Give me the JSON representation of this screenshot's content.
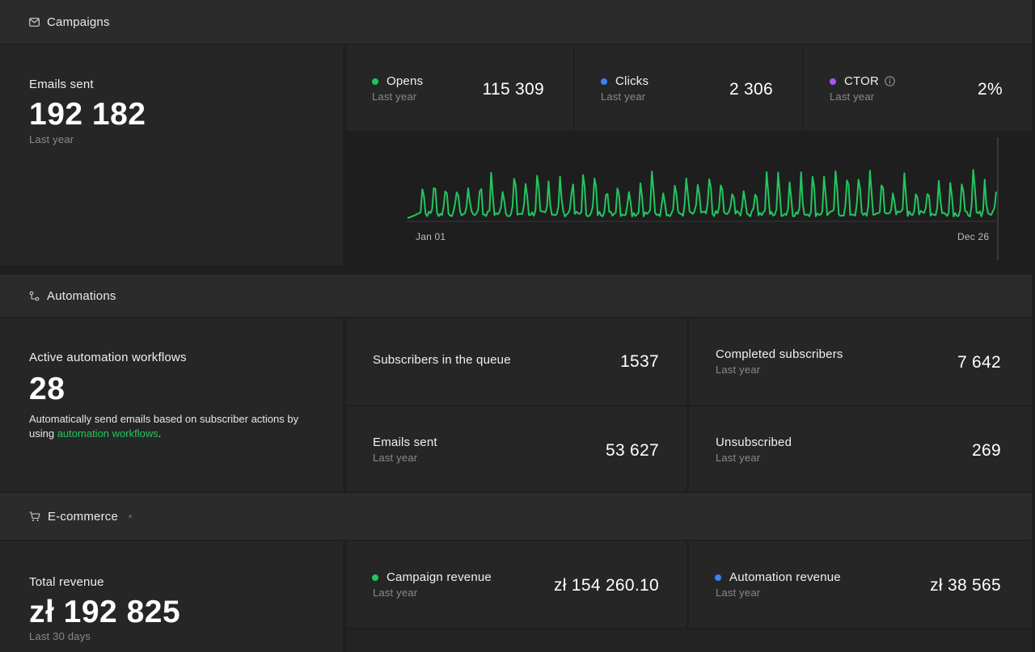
{
  "campaigns": {
    "header": "Campaigns",
    "emails_sent": {
      "label": "Emails sent",
      "value": "192 182",
      "period": "Last year"
    },
    "opens": {
      "label": "Opens",
      "period": "Last year",
      "value": "115 309",
      "color": "#22c55e"
    },
    "clicks": {
      "label": "Clicks",
      "period": "Last year",
      "value": "2 306",
      "color": "#3b82f6"
    },
    "ctor": {
      "label": "CTOR",
      "period": "Last year",
      "value": "2%",
      "color": "#a855f7"
    },
    "chart": {
      "x_start": "Jan 01",
      "x_end": "Dec 26",
      "line_color": "#22c55e"
    }
  },
  "automations": {
    "header": "Automations",
    "active": {
      "label": "Active automation workflows",
      "value": "28",
      "description_prefix": "Automatically send emails based on subscriber actions by using ",
      "description_link": "automation workflows",
      "description_suffix": "."
    },
    "queue": {
      "label": "Subscribers in the queue",
      "value": "1537"
    },
    "completed": {
      "label": "Completed subscribers",
      "period": "Last year",
      "value": "7 642"
    },
    "emails_sent": {
      "label": "Emails sent",
      "period": "Last year",
      "value": "53 627"
    },
    "unsubscribed": {
      "label": "Unsubscribed",
      "period": "Last year",
      "value": "269"
    }
  },
  "ecommerce": {
    "header": "E-commerce",
    "total_revenue": {
      "label": "Total revenue",
      "value": "zł 192 825",
      "period": "Last 30 days"
    },
    "campaign_revenue": {
      "label": "Campaign revenue",
      "period": "Last year",
      "value": "zł 154 260.10",
      "color": "#22c55e"
    },
    "automation_revenue": {
      "label": "Automation revenue",
      "period": "Last year",
      "value": "zł 38 565",
      "color": "#3b82f6"
    }
  }
}
